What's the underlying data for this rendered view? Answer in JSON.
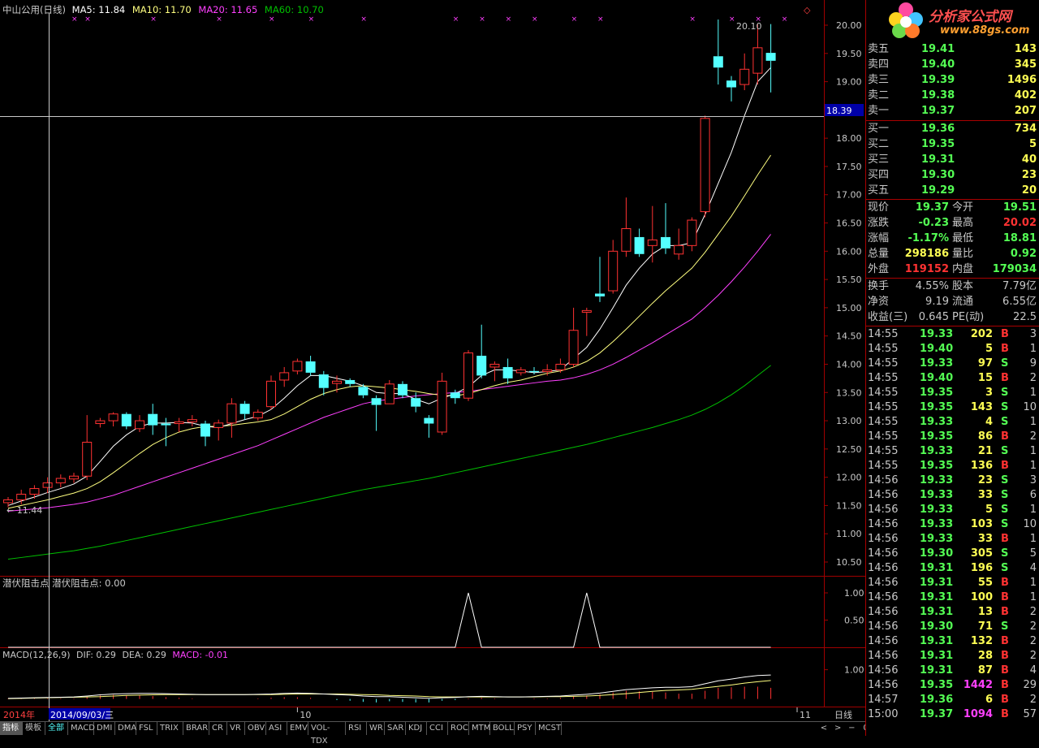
{
  "header": {
    "title": "中山公用(日线)",
    "ma5": "MA5: 11.84",
    "ma10": "MA10: 11.70",
    "ma20": "MA20: 11.65",
    "ma60": "MA60: 10.70"
  },
  "colors": {
    "up": "#ff3232",
    "down": "#54ffff",
    "ma5": "#ffffff",
    "ma10": "#ffff80",
    "ma20": "#ff40ff",
    "ma60": "#00c000",
    "grid": "#a00000",
    "accent_blue": "#0000a8"
  },
  "chart_data": [
    {
      "type": "candlestick",
      "ylim": [
        10.3,
        20.2
      ],
      "yticks": [
        "20.00",
        "19.50",
        "19.00",
        "18.50",
        "18.00",
        "17.50",
        "17.00",
        "16.50",
        "16.00",
        "15.50",
        "15.00",
        "14.50",
        "14.00",
        "13.50",
        "13.00",
        "12.50",
        "12.00",
        "11.50",
        "11.00",
        "10.50"
      ],
      "crosshair_value": "18.39",
      "max_label": "20.10",
      "min_label": "11.44",
      "candles": [
        {
          "o": 11.55,
          "c": 11.6,
          "h": 11.65,
          "l": 11.47
        },
        {
          "o": 11.6,
          "c": 11.7,
          "h": 11.78,
          "l": 11.52
        },
        {
          "o": 11.7,
          "c": 11.8,
          "h": 11.86,
          "l": 11.62
        },
        {
          "o": 11.82,
          "c": 11.9,
          "h": 12.0,
          "l": 11.72
        },
        {
          "o": 11.9,
          "c": 11.98,
          "h": 12.05,
          "l": 11.82
        },
        {
          "o": 11.97,
          "c": 12.02,
          "h": 12.08,
          "l": 11.9
        },
        {
          "o": 12.02,
          "c": 12.62,
          "h": 13.1,
          "l": 11.95
        },
        {
          "o": 12.95,
          "c": 13.0,
          "h": 13.05,
          "l": 12.88
        },
        {
          "o": 13.0,
          "c": 13.12,
          "h": 13.15,
          "l": 12.9
        },
        {
          "o": 13.12,
          "c": 12.9,
          "h": 13.15,
          "l": 12.85
        },
        {
          "o": 12.86,
          "c": 13.0,
          "h": 13.1,
          "l": 12.8
        },
        {
          "o": 13.12,
          "c": 12.92,
          "h": 13.3,
          "l": 12.75
        },
        {
          "o": 12.95,
          "c": 12.92,
          "h": 13.05,
          "l": 12.55
        },
        {
          "o": 12.95,
          "c": 12.98,
          "h": 13.05,
          "l": 12.8
        },
        {
          "o": 12.98,
          "c": 13.02,
          "h": 13.1,
          "l": 12.9
        },
        {
          "o": 12.95,
          "c": 12.72,
          "h": 13.0,
          "l": 12.55
        },
        {
          "o": 12.88,
          "c": 12.96,
          "h": 13.02,
          "l": 12.65
        },
        {
          "o": 12.96,
          "c": 13.3,
          "h": 13.4,
          "l": 12.7
        },
        {
          "o": 13.3,
          "c": 13.12,
          "h": 13.35,
          "l": 13.02
        },
        {
          "o": 13.05,
          "c": 13.15,
          "h": 13.2,
          "l": 13.0
        },
        {
          "o": 13.25,
          "c": 13.7,
          "h": 13.8,
          "l": 13.2
        },
        {
          "o": 13.72,
          "c": 13.85,
          "h": 13.95,
          "l": 13.6
        },
        {
          "o": 13.88,
          "c": 14.05,
          "h": 14.1,
          "l": 13.82
        },
        {
          "o": 14.05,
          "c": 13.85,
          "h": 14.15,
          "l": 13.8
        },
        {
          "o": 13.82,
          "c": 13.58,
          "h": 13.88,
          "l": 13.45
        },
        {
          "o": 13.66,
          "c": 13.7,
          "h": 13.8,
          "l": 13.5
        },
        {
          "o": 13.72,
          "c": 13.65,
          "h": 13.75,
          "l": 13.6
        },
        {
          "o": 13.6,
          "c": 13.45,
          "h": 13.65,
          "l": 13.4
        },
        {
          "o": 13.4,
          "c": 13.28,
          "h": 13.45,
          "l": 12.82
        },
        {
          "o": 13.3,
          "c": 13.65,
          "h": 13.72,
          "l": 13.3
        },
        {
          "o": 13.65,
          "c": 13.45,
          "h": 13.7,
          "l": 13.4
        },
        {
          "o": 13.4,
          "c": 13.25,
          "h": 13.5,
          "l": 13.15
        },
        {
          "o": 13.05,
          "c": 12.95,
          "h": 13.1,
          "l": 12.7
        },
        {
          "o": 12.8,
          "c": 13.7,
          "h": 13.85,
          "l": 12.75
        },
        {
          "o": 13.5,
          "c": 13.4,
          "h": 13.55,
          "l": 13.3
        },
        {
          "o": 13.4,
          "c": 14.2,
          "h": 14.25,
          "l": 13.35
        },
        {
          "o": 14.15,
          "c": 13.8,
          "h": 14.7,
          "l": 13.75
        },
        {
          "o": 13.95,
          "c": 14.0,
          "h": 14.05,
          "l": 13.7
        },
        {
          "o": 13.95,
          "c": 13.75,
          "h": 14.1,
          "l": 13.65
        },
        {
          "o": 13.85,
          "c": 13.9,
          "h": 13.95,
          "l": 13.8
        },
        {
          "o": 13.88,
          "c": 13.86,
          "h": 13.95,
          "l": 13.82
        },
        {
          "o": 13.87,
          "c": 13.9,
          "h": 14.0,
          "l": 13.8
        },
        {
          "o": 13.9,
          "c": 14.0,
          "h": 14.1,
          "l": 13.85
        },
        {
          "o": 14.0,
          "c": 14.6,
          "h": 15.0,
          "l": 13.95
        },
        {
          "o": 14.92,
          "c": 14.95,
          "h": 15.0,
          "l": 14.5
        },
        {
          "o": 15.25,
          "c": 15.2,
          "h": 15.9,
          "l": 15.1
        },
        {
          "o": 15.3,
          "c": 16.0,
          "h": 16.2,
          "l": 15.25
        },
        {
          "o": 16.0,
          "c": 16.4,
          "h": 16.95,
          "l": 15.9
        },
        {
          "o": 16.25,
          "c": 15.95,
          "h": 16.4,
          "l": 15.9
        },
        {
          "o": 16.1,
          "c": 16.2,
          "h": 16.8,
          "l": 15.8
        },
        {
          "o": 16.25,
          "c": 16.05,
          "h": 16.85,
          "l": 15.95
        },
        {
          "o": 15.95,
          "c": 16.1,
          "h": 16.4,
          "l": 15.85
        },
        {
          "o": 16.1,
          "c": 16.55,
          "h": 16.6,
          "l": 16.0
        },
        {
          "o": 16.7,
          "c": 18.35,
          "h": 18.4,
          "l": 16.6
        },
        {
          "o": 19.45,
          "c": 19.25,
          "h": 20.1,
          "l": 18.95
        },
        {
          "o": 19.02,
          "c": 18.9,
          "h": 19.1,
          "l": 18.65
        },
        {
          "o": 18.95,
          "c": 19.22,
          "h": 19.5,
          "l": 18.85
        },
        {
          "o": 19.15,
          "c": 19.6,
          "h": 20.02,
          "l": 18.95
        },
        {
          "o": 19.51,
          "c": 19.37,
          "h": 20.02,
          "l": 18.81
        }
      ],
      "ma5": [
        11.5,
        11.58,
        11.65,
        11.73,
        11.8,
        11.88,
        12.02,
        12.28,
        12.55,
        12.75,
        12.9,
        12.96,
        12.96,
        12.97,
        12.96,
        12.9,
        12.88,
        12.95,
        13.02,
        13.08,
        13.2,
        13.4,
        13.62,
        13.8,
        13.8,
        13.75,
        13.7,
        13.62,
        13.5,
        13.48,
        13.48,
        13.38,
        13.3,
        13.4,
        13.48,
        13.6,
        13.8,
        13.9,
        13.9,
        13.88,
        13.85,
        13.87,
        13.9,
        14.1,
        14.3,
        14.62,
        15.0,
        15.4,
        15.7,
        15.95,
        16.1,
        16.1,
        16.15,
        16.65,
        17.2,
        17.75,
        18.4,
        19.0,
        19.25
      ],
      "ma10": [
        11.45,
        11.5,
        11.55,
        11.6,
        11.66,
        11.72,
        11.8,
        11.92,
        12.08,
        12.25,
        12.42,
        12.58,
        12.7,
        12.8,
        12.86,
        12.9,
        12.9,
        12.92,
        12.95,
        12.98,
        13.02,
        13.12,
        13.25,
        13.38,
        13.48,
        13.55,
        13.6,
        13.62,
        13.6,
        13.58,
        13.55,
        13.52,
        13.48,
        13.45,
        13.44,
        13.48,
        13.55,
        13.62,
        13.68,
        13.72,
        13.78,
        13.84,
        13.88,
        13.95,
        14.05,
        14.2,
        14.4,
        14.62,
        14.85,
        15.08,
        15.3,
        15.5,
        15.7,
        15.98,
        16.3,
        16.62,
        16.98,
        17.35,
        17.7
      ],
      "ma20": [
        11.4,
        11.42,
        11.44,
        11.46,
        11.49,
        11.52,
        11.56,
        11.62,
        11.68,
        11.76,
        11.84,
        11.92,
        12.0,
        12.08,
        12.16,
        12.24,
        12.32,
        12.4,
        12.48,
        12.56,
        12.66,
        12.76,
        12.86,
        12.96,
        13.06,
        13.14,
        13.22,
        13.3,
        13.35,
        13.38,
        13.41,
        13.44,
        13.46,
        13.48,
        13.5,
        13.52,
        13.55,
        13.58,
        13.61,
        13.64,
        13.67,
        13.7,
        13.72,
        13.76,
        13.82,
        13.9,
        14.0,
        14.12,
        14.25,
        14.38,
        14.52,
        14.66,
        14.8,
        15.0,
        15.22,
        15.46,
        15.72,
        16.0,
        16.3
      ],
      "ma60": [
        10.55,
        10.58,
        10.61,
        10.64,
        10.67,
        10.7,
        10.74,
        10.78,
        10.83,
        10.88,
        10.93,
        10.98,
        11.03,
        11.08,
        11.13,
        11.18,
        11.23,
        11.28,
        11.33,
        11.38,
        11.43,
        11.48,
        11.53,
        11.58,
        11.63,
        11.68,
        11.73,
        11.78,
        11.82,
        11.86,
        11.9,
        11.94,
        11.98,
        12.03,
        12.08,
        12.13,
        12.18,
        12.23,
        12.28,
        12.33,
        12.38,
        12.43,
        12.48,
        12.53,
        12.58,
        12.64,
        12.7,
        12.76,
        12.82,
        12.88,
        12.95,
        13.02,
        13.1,
        13.2,
        13.32,
        13.46,
        13.62,
        13.8,
        13.98
      ]
    },
    {
      "type": "line",
      "title": "潜伏阻击点 潜伏阻击点: 0.00",
      "ylim": [
        0,
        1.2
      ],
      "yticks": [
        "1.00",
        "0.50"
      ],
      "signal_indices": [
        35,
        44
      ]
    },
    {
      "type": "bar",
      "title": "MACD(12,26,9)",
      "dif_label": "DIF: 0.29",
      "dea_label": "DEA: 0.29",
      "macd_label": "MACD: -0.01",
      "ylim": [
        -0.15,
        1.35
      ],
      "yticks": [
        "1.00"
      ],
      "dif": [
        0.02,
        0.03,
        0.04,
        0.05,
        0.06,
        0.07,
        0.1,
        0.14,
        0.17,
        0.18,
        0.19,
        0.19,
        0.18,
        0.17,
        0.16,
        0.15,
        0.15,
        0.15,
        0.15,
        0.16,
        0.17,
        0.19,
        0.2,
        0.19,
        0.17,
        0.15,
        0.13,
        0.1,
        0.08,
        0.08,
        0.06,
        0.04,
        0.02,
        0.04,
        0.05,
        0.08,
        0.09,
        0.08,
        0.07,
        0.07,
        0.08,
        0.09,
        0.1,
        0.13,
        0.16,
        0.2,
        0.26,
        0.32,
        0.35,
        0.38,
        0.4,
        0.4,
        0.42,
        0.52,
        0.62,
        0.68,
        0.75,
        0.8,
        0.82
      ],
      "dea": [
        0.01,
        0.02,
        0.03,
        0.04,
        0.05,
        0.06,
        0.07,
        0.08,
        0.1,
        0.12,
        0.13,
        0.14,
        0.15,
        0.15,
        0.15,
        0.15,
        0.15,
        0.15,
        0.15,
        0.15,
        0.15,
        0.16,
        0.17,
        0.17,
        0.17,
        0.17,
        0.16,
        0.15,
        0.14,
        0.12,
        0.11,
        0.1,
        0.08,
        0.07,
        0.07,
        0.07,
        0.07,
        0.07,
        0.07,
        0.07,
        0.07,
        0.08,
        0.08,
        0.09,
        0.1,
        0.12,
        0.15,
        0.18,
        0.22,
        0.26,
        0.29,
        0.31,
        0.33,
        0.38,
        0.43,
        0.48,
        0.54,
        0.59,
        0.63
      ],
      "x_labels": [
        {
          "idx": 3,
          "text": "10"
        },
        {
          "idx": 41,
          "text": "11"
        }
      ]
    }
  ],
  "bottom_axis": {
    "year": "2014年",
    "cursor_date": "2014/09/03/三",
    "period": "日线"
  },
  "tabs": [
    "指标",
    "模板",
    "全部",
    "MACD",
    "DMI",
    "DMA",
    "FSL",
    "TRIX",
    "BRAR",
    "CR",
    "VR",
    "OBV",
    "ASI",
    "EMV",
    "VOL-TDX",
    "RSI",
    "WR",
    "SAR",
    "KDJ",
    "CCI",
    "ROC",
    "MTM",
    "BOLL",
    "PSY",
    "MCST"
  ],
  "nav": {
    "prev": "<",
    "next": ">",
    "minus": "−",
    "zero": "0"
  },
  "logo": {
    "name": "分析家公式网",
    "url": "www.88gs.com"
  },
  "sell_levels": [
    {
      "label": "卖五",
      "price": "19.41",
      "vol": "143"
    },
    {
      "label": "卖四",
      "price": "19.40",
      "vol": "345"
    },
    {
      "label": "卖三",
      "price": "19.39",
      "vol": "1496"
    },
    {
      "label": "卖二",
      "price": "19.38",
      "vol": "402"
    },
    {
      "label": "卖一",
      "price": "19.37",
      "vol": "207"
    }
  ],
  "buy_levels": [
    {
      "label": "买一",
      "price": "19.36",
      "vol": "734"
    },
    {
      "label": "买二",
      "price": "19.35",
      "vol": "5"
    },
    {
      "label": "买三",
      "price": "19.31",
      "vol": "40"
    },
    {
      "label": "买四",
      "price": "19.30",
      "vol": "23"
    },
    {
      "label": "买五",
      "price": "19.29",
      "vol": "20"
    }
  ],
  "quote": [
    {
      "l1": "现价",
      "v1": "19.37",
      "c1": "#54ff54",
      "l2": "今开",
      "v2": "19.51",
      "c2": "#54ff54"
    },
    {
      "l1": "涨跌",
      "v1": "-0.23",
      "c1": "#54ff54",
      "l2": "最高",
      "v2": "20.02",
      "c2": "#ff3232"
    },
    {
      "l1": "涨幅",
      "v1": "-1.17%",
      "c1": "#54ff54",
      "l2": "最低",
      "v2": "18.81",
      "c2": "#54ff54"
    },
    {
      "l1": "总量",
      "v1": "298186",
      "c1": "#ffff54",
      "l2": "量比",
      "v2": "0.92",
      "c2": "#54ff54"
    },
    {
      "l1": "外盘",
      "v1": "119152",
      "c1": "#ff3232",
      "l2": "内盘",
      "v2": "179034",
      "c2": "#54ff54"
    }
  ],
  "stats": [
    {
      "l1": "换手",
      "v1": "4.55%",
      "l2": "股本",
      "v2": "7.79亿"
    },
    {
      "l1": "净资",
      "v1": "9.19",
      "l2": "流通",
      "v2": "6.55亿"
    },
    {
      "l1": "收益(三)",
      "v1": "0.645",
      "l2": "PE(动)",
      "v2": "22.5"
    }
  ],
  "ticks": [
    {
      "t": "14:55",
      "p": "19.33",
      "v": "202",
      "bs": "B",
      "n": "3"
    },
    {
      "t": "14:55",
      "p": "19.40",
      "v": "5",
      "bs": "B",
      "n": "1"
    },
    {
      "t": "14:55",
      "p": "19.33",
      "v": "97",
      "bs": "S",
      "n": "9"
    },
    {
      "t": "14:55",
      "p": "19.40",
      "v": "15",
      "bs": "B",
      "n": "2"
    },
    {
      "t": "14:55",
      "p": "19.35",
      "v": "3",
      "bs": "S",
      "n": "1"
    },
    {
      "t": "14:55",
      "p": "19.35",
      "v": "143",
      "bs": "S",
      "n": "10"
    },
    {
      "t": "14:55",
      "p": "19.33",
      "v": "4",
      "bs": "S",
      "n": "1"
    },
    {
      "t": "14:55",
      "p": "19.35",
      "v": "86",
      "bs": "B",
      "n": "2"
    },
    {
      "t": "14:55",
      "p": "19.33",
      "v": "21",
      "bs": "S",
      "n": "1"
    },
    {
      "t": "14:55",
      "p": "19.35",
      "v": "136",
      "bs": "B",
      "n": "1"
    },
    {
      "t": "14:56",
      "p": "19.33",
      "v": "23",
      "bs": "S",
      "n": "3"
    },
    {
      "t": "14:56",
      "p": "19.33",
      "v": "33",
      "bs": "S",
      "n": "6"
    },
    {
      "t": "14:56",
      "p": "19.33",
      "v": "5",
      "bs": "S",
      "n": "1"
    },
    {
      "t": "14:56",
      "p": "19.33",
      "v": "103",
      "bs": "S",
      "n": "10"
    },
    {
      "t": "14:56",
      "p": "19.33",
      "v": "33",
      "bs": "B",
      "n": "1"
    },
    {
      "t": "14:56",
      "p": "19.30",
      "v": "305",
      "bs": "S",
      "n": "5"
    },
    {
      "t": "14:56",
      "p": "19.31",
      "v": "196",
      "bs": "S",
      "n": "4"
    },
    {
      "t": "14:56",
      "p": "19.31",
      "v": "55",
      "bs": "B",
      "n": "1"
    },
    {
      "t": "14:56",
      "p": "19.31",
      "v": "100",
      "bs": "B",
      "n": "1"
    },
    {
      "t": "14:56",
      "p": "19.31",
      "v": "13",
      "bs": "B",
      "n": "2"
    },
    {
      "t": "14:56",
      "p": "19.30",
      "v": "71",
      "bs": "S",
      "n": "2"
    },
    {
      "t": "14:56",
      "p": "19.31",
      "v": "132",
      "bs": "B",
      "n": "2"
    },
    {
      "t": "14:56",
      "p": "19.31",
      "v": "28",
      "bs": "B",
      "n": "2"
    },
    {
      "t": "14:56",
      "p": "19.31",
      "v": "87",
      "bs": "B",
      "n": "4"
    },
    {
      "t": "14:56",
      "p": "19.35",
      "v": "1442",
      "bs": "B",
      "n": "29"
    },
    {
      "t": "14:57",
      "p": "19.36",
      "v": "6",
      "bs": "B",
      "n": "2"
    },
    {
      "t": "15:00",
      "p": "19.37",
      "v": "1094",
      "bs": "B",
      "n": "57"
    }
  ]
}
